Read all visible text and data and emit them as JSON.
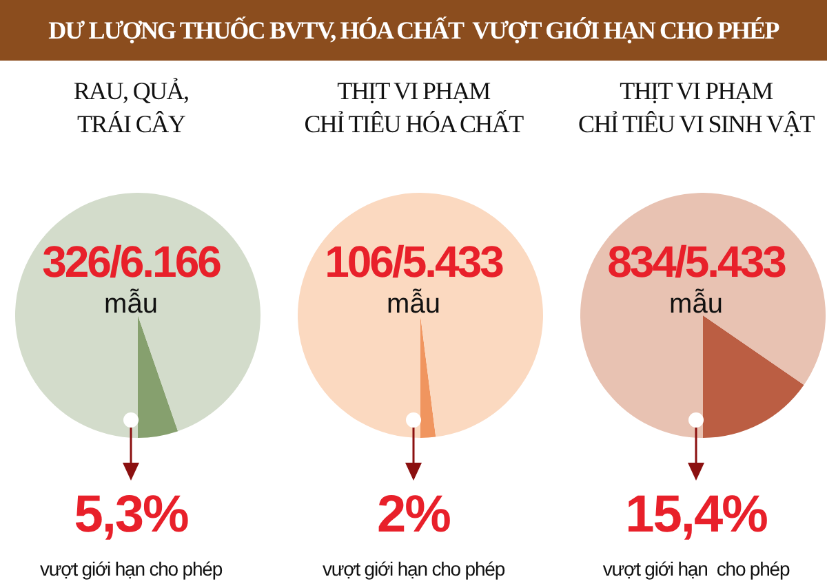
{
  "chart_data": [
    {
      "type": "other",
      "title": "DƯ LƯỢNG THUỐC BVTV, HÓA CHẤT  VƯỢT GIỚI HẠN CHO PHÉP"
    },
    {
      "type": "pie",
      "title": "RAU, QUẢ,\nTRÁI CÂY",
      "categories": [
        null,
        null
      ],
      "values": [
        5.3,
        94.7
      ],
      "colors": [
        "#86a06e",
        "#d3dccb"
      ],
      "annotations": [
        "326/6.166",
        "mẫu",
        "5,3%",
        "vượt giới hạn cho phép"
      ]
    },
    {
      "type": "pie",
      "title": "THỊT VI PHẠM\nCHỈ TIÊU HÓA CHẤT",
      "categories": [
        null,
        null
      ],
      "values": [
        2,
        98
      ],
      "colors": [
        "#f0955f",
        "#fbd9c0"
      ],
      "annotations": [
        "106/5.433",
        "mẫu",
        "2%",
        "vượt giới hạn cho phép"
      ]
    },
    {
      "type": "pie",
      "title": "THỊT VI PHẠM\nCHỈ TIÊU VI SINH VẬT",
      "categories": [
        null,
        null
      ],
      "values": [
        15.4,
        84.6
      ],
      "colors": [
        "#bb5e43",
        "#e8c2b2"
      ],
      "annotations": [
        "834/5.433",
        "mẫu",
        "15,4%",
        "vượt giới hạn  cho phép"
      ]
    }
  ]
}
